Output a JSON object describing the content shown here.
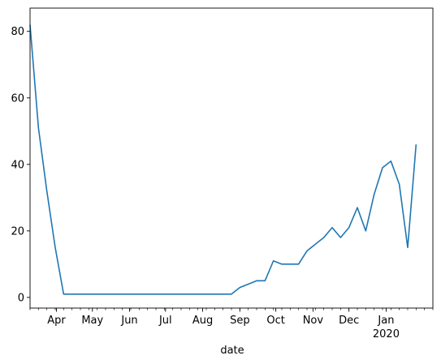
{
  "chart_data": {
    "type": "line",
    "title": "",
    "xlabel": "date",
    "ylabel": "",
    "grid": false,
    "colors": {
      "line": "#1f77b4",
      "axes": "#000000",
      "background": "#ffffff"
    },
    "xlim": [
      "2019-03-10",
      "2020-02-09"
    ],
    "ylim": [
      -3.2,
      87
    ],
    "yticks": [
      0,
      20,
      40,
      60,
      80
    ],
    "xticks_major": [
      {
        "date": "2019-04-01",
        "label": "Apr",
        "sublabel": ""
      },
      {
        "date": "2019-05-01",
        "label": "May",
        "sublabel": ""
      },
      {
        "date": "2019-06-01",
        "label": "Jun",
        "sublabel": ""
      },
      {
        "date": "2019-07-01",
        "label": "Jul",
        "sublabel": ""
      },
      {
        "date": "2019-08-01",
        "label": "Aug",
        "sublabel": ""
      },
      {
        "date": "2019-09-01",
        "label": "Sep",
        "sublabel": ""
      },
      {
        "date": "2019-10-01",
        "label": "Oct",
        "sublabel": ""
      },
      {
        "date": "2019-11-01",
        "label": "Nov",
        "sublabel": ""
      },
      {
        "date": "2019-12-01",
        "label": "Dec",
        "sublabel": ""
      },
      {
        "date": "2020-01-01",
        "label": "Jan",
        "sublabel": "2020"
      }
    ],
    "xticks_minor": [
      "2019-03-10",
      "2019-03-17",
      "2019-03-24",
      "2019-03-31",
      "2019-04-07",
      "2019-04-14",
      "2019-04-21",
      "2019-04-28",
      "2019-05-05",
      "2019-05-12",
      "2019-05-19",
      "2019-05-26",
      "2019-06-02",
      "2019-06-09",
      "2019-06-16",
      "2019-06-23",
      "2019-06-30",
      "2019-07-07",
      "2019-07-14",
      "2019-07-21",
      "2019-07-28",
      "2019-08-04",
      "2019-08-11",
      "2019-08-18",
      "2019-08-25",
      "2019-09-01",
      "2019-09-08",
      "2019-09-15",
      "2019-09-22",
      "2019-09-29",
      "2019-10-06",
      "2019-10-13",
      "2019-10-20",
      "2019-10-27",
      "2019-11-03",
      "2019-11-10",
      "2019-11-17",
      "2019-11-24",
      "2019-12-01",
      "2019-12-08",
      "2019-12-15",
      "2019-12-22",
      "2019-12-29",
      "2020-01-05",
      "2020-01-12",
      "2020-01-19",
      "2020-01-26",
      "2020-02-02",
      "2020-02-09"
    ],
    "series": [
      {
        "x": [
          "2019-03-10",
          "2019-03-17",
          "2019-03-24",
          "2019-03-31",
          "2019-04-07",
          "2019-04-14",
          "2019-04-21",
          "2019-04-28",
          "2019-05-05",
          "2019-05-12",
          "2019-05-19",
          "2019-05-26",
          "2019-06-02",
          "2019-06-09",
          "2019-06-16",
          "2019-06-23",
          "2019-06-30",
          "2019-07-07",
          "2019-07-14",
          "2019-07-21",
          "2019-07-28",
          "2019-08-04",
          "2019-08-11",
          "2019-08-18",
          "2019-08-25",
          "2019-09-01",
          "2019-09-08",
          "2019-09-15",
          "2019-09-22",
          "2019-09-29",
          "2019-10-06",
          "2019-10-13",
          "2019-10-20",
          "2019-10-27",
          "2019-11-03",
          "2019-11-10",
          "2019-11-17",
          "2019-11-24",
          "2019-12-01",
          "2019-12-08",
          "2019-12-15",
          "2019-12-22",
          "2019-12-29",
          "2020-01-05",
          "2020-01-12",
          "2020-01-19",
          "2020-01-26",
          "2020-02-02",
          "2020-02-09"
        ],
        "y": [
          82,
          51,
          32,
          15,
          1,
          1,
          1,
          1,
          1,
          1,
          1,
          1,
          1,
          1,
          1,
          1,
          1,
          1,
          1,
          1,
          1,
          1,
          1,
          1,
          1,
          3,
          4,
          5,
          5,
          11,
          10,
          10,
          10,
          14,
          16,
          18,
          21,
          18,
          21,
          27,
          20,
          31,
          39,
          41,
          34,
          15,
          46,
          null,
          null
        ]
      }
    ]
  }
}
